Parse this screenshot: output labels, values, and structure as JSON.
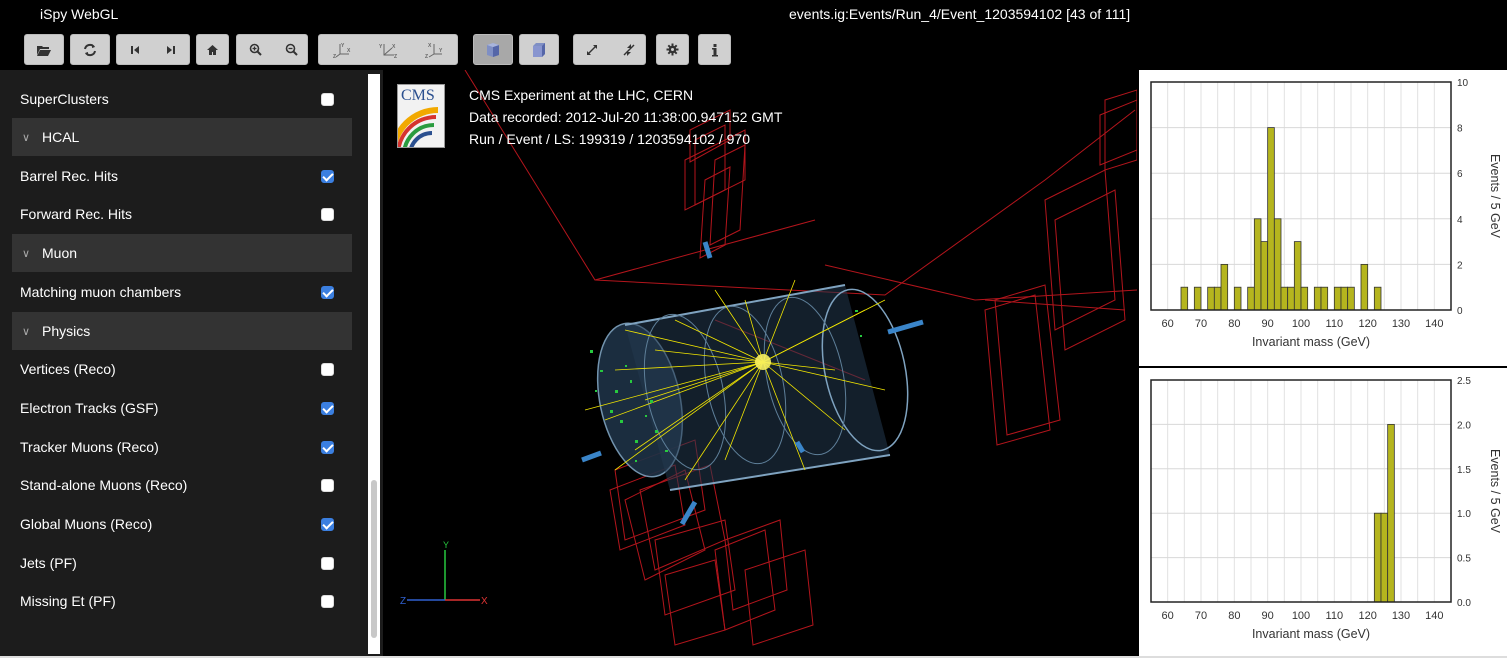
{
  "app_title": "iSpy WebGL",
  "event_title": "events.ig:Events/Run_4/Event_1203594102 [43 of 111]",
  "toolbar": {
    "buttons": [
      {
        "name": "open-file-button",
        "icon": "folder-open-icon"
      },
      {
        "name": "reload-button",
        "icon": "refresh-icon"
      },
      {
        "name": "previous-event-button",
        "icon": "step-backward-icon"
      },
      {
        "name": "next-event-button",
        "icon": "step-forward-icon"
      },
      {
        "name": "home-view-button",
        "icon": "home-icon"
      },
      {
        "name": "zoom-in-button",
        "icon": "zoom-in-icon"
      },
      {
        "name": "zoom-out-button",
        "icon": "zoom-out-icon"
      },
      {
        "name": "view-xz-button",
        "icon": "axes-xz-icon"
      },
      {
        "name": "view-xy-button",
        "icon": "axes-xy-icon"
      },
      {
        "name": "view-yz-button",
        "icon": "axes-yz-icon"
      },
      {
        "name": "perspective-button",
        "icon": "cube-perspective-icon"
      },
      {
        "name": "orthographic-button",
        "icon": "cube-orthographic-icon"
      },
      {
        "name": "enter-fullscreen-button",
        "icon": "expand-icon"
      },
      {
        "name": "exit-fullscreen-button",
        "icon": "compress-icon"
      },
      {
        "name": "settings-button",
        "icon": "gear-icon"
      },
      {
        "name": "info-button",
        "icon": "info-icon"
      }
    ]
  },
  "sidebar": {
    "rows": [
      {
        "type": "item",
        "label": "SuperClusters",
        "checked": false
      },
      {
        "type": "group",
        "label": "HCAL"
      },
      {
        "type": "item",
        "label": "Barrel Rec. Hits",
        "checked": true
      },
      {
        "type": "item",
        "label": "Forward Rec. Hits",
        "checked": false
      },
      {
        "type": "group",
        "label": "Muon"
      },
      {
        "type": "item",
        "label": "Matching muon chambers",
        "checked": true
      },
      {
        "type": "group",
        "label": "Physics"
      },
      {
        "type": "item",
        "label": "Vertices (Reco)",
        "checked": false
      },
      {
        "type": "item",
        "label": "Electron Tracks (GSF)",
        "checked": true
      },
      {
        "type": "item",
        "label": "Tracker Muons (Reco)",
        "checked": true
      },
      {
        "type": "item",
        "label": "Stand-alone Muons (Reco)",
        "checked": false
      },
      {
        "type": "item",
        "label": "Global Muons (Reco)",
        "checked": true
      },
      {
        "type": "item",
        "label": "Jets (PF)",
        "checked": false
      },
      {
        "type": "item",
        "label": "Missing Et (PF)",
        "checked": false
      }
    ]
  },
  "event_info": {
    "logo_text": "CMS",
    "line1": "CMS Experiment at the LHC, CERN",
    "line2": "Data recorded: 2012-Jul-20 11:38:00.947152 GMT",
    "line3": "Run / Event / LS: 199319 / 1203594102 / 970"
  },
  "axes_labels": {
    "y": "Y",
    "x": "X",
    "z": "Z"
  },
  "chart_data": [
    {
      "type": "bar",
      "xlabel": "Invariant mass (GeV)",
      "ylabel": "Events / 5 GeV",
      "x_ticks": [
        60,
        70,
        80,
        90,
        100,
        110,
        120,
        130,
        140
      ],
      "xlim": [
        55,
        145
      ],
      "ylim": [
        0,
        10
      ],
      "y_ticks": [
        "0",
        "2",
        "4",
        "6",
        "8",
        "10"
      ],
      "bin_width": 2,
      "bins": [
        {
          "x": 64,
          "y": 1
        },
        {
          "x": 68,
          "y": 1
        },
        {
          "x": 72,
          "y": 1
        },
        {
          "x": 74,
          "y": 1
        },
        {
          "x": 76,
          "y": 2
        },
        {
          "x": 80,
          "y": 1
        },
        {
          "x": 84,
          "y": 1
        },
        {
          "x": 86,
          "y": 4
        },
        {
          "x": 88,
          "y": 3
        },
        {
          "x": 90,
          "y": 8
        },
        {
          "x": 92,
          "y": 4
        },
        {
          "x": 94,
          "y": 1
        },
        {
          "x": 96,
          "y": 1
        },
        {
          "x": 98,
          "y": 3
        },
        {
          "x": 100,
          "y": 1
        },
        {
          "x": 104,
          "y": 1
        },
        {
          "x": 106,
          "y": 1
        },
        {
          "x": 110,
          "y": 1
        },
        {
          "x": 112,
          "y": 1
        },
        {
          "x": 114,
          "y": 1
        },
        {
          "x": 118,
          "y": 2
        },
        {
          "x": 122,
          "y": 1
        }
      ],
      "bar_color": "#b5b51e"
    },
    {
      "type": "bar",
      "xlabel": "Invariant mass (GeV)",
      "ylabel": "Events / 5 GeV",
      "x_ticks": [
        60,
        70,
        80,
        90,
        100,
        110,
        120,
        130,
        140
      ],
      "xlim": [
        55,
        145
      ],
      "ylim": [
        0,
        2.5
      ],
      "y_ticks": [
        "0.0",
        "0.5",
        "1.0",
        "1.5",
        "2.0",
        "2.5"
      ],
      "bin_width": 2,
      "bins": [
        {
          "x": 122,
          "y": 1
        },
        {
          "x": 124,
          "y": 1
        },
        {
          "x": 126,
          "y": 2
        }
      ],
      "bar_color": "#b5b51e"
    }
  ]
}
